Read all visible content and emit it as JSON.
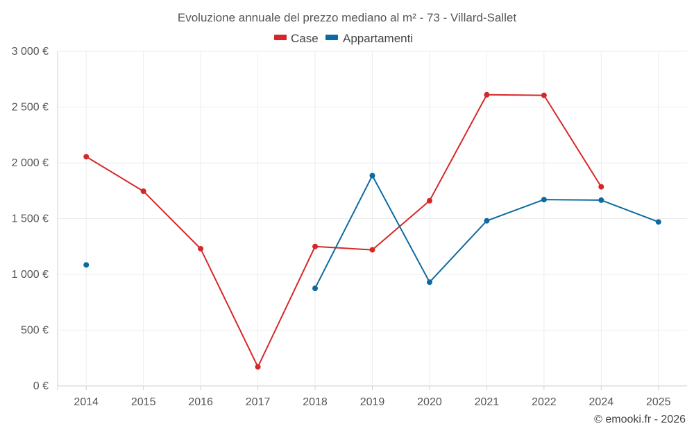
{
  "chart_data": {
    "type": "line",
    "title": "Evoluzione annuale del prezzo mediano al m² - 73 - Villard-Sallet",
    "categories": [
      "2014",
      "2015",
      "2016",
      "2017",
      "2018",
      "2019",
      "2020",
      "2021",
      "2022",
      "2024",
      "2025"
    ],
    "series": [
      {
        "name": "Case",
        "color": "#d62728",
        "values": [
          2055,
          1745,
          1230,
          170,
          1250,
          1220,
          1660,
          2610,
          2605,
          1785,
          null
        ]
      },
      {
        "name": "Appartamenti",
        "color": "#0d6aa0",
        "values": [
          1085,
          null,
          null,
          null,
          875,
          1885,
          930,
          1480,
          1670,
          1665,
          1470
        ]
      }
    ],
    "ylim": [
      0,
      3000
    ],
    "yticks": [
      0,
      500,
      1000,
      1500,
      2000,
      2500,
      3000
    ],
    "ytick_labels": [
      "0 €",
      "500 €",
      "1 000 €",
      "1 500 €",
      "2 000 €",
      "2 500 €",
      "3 000 €"
    ],
    "xlabel": "",
    "ylabel": "",
    "grid": true,
    "legend": "top-center"
  },
  "credit": "© emooki.fr - 2026"
}
